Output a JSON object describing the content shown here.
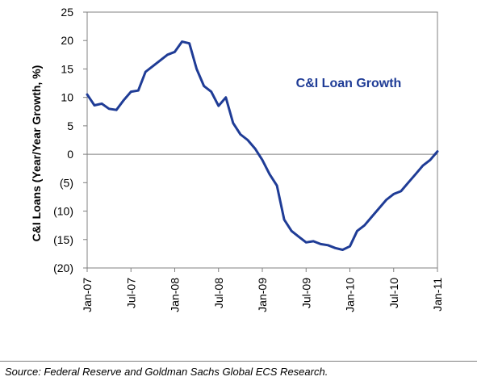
{
  "chart_data": {
    "type": "line",
    "title": "",
    "xlabel": "",
    "ylabel": "C&I Loans (Year/Year Growth, %)",
    "ylim": [
      -20,
      25
    ],
    "xlim": [
      "2007-01",
      "2011-01"
    ],
    "y_ticks": [
      {
        "value": 25,
        "label": "25"
      },
      {
        "value": 20,
        "label": "20"
      },
      {
        "value": 15,
        "label": "15"
      },
      {
        "value": 10,
        "label": "10"
      },
      {
        "value": 5,
        "label": "5"
      },
      {
        "value": 0,
        "label": "0"
      },
      {
        "value": -5,
        "label": "(5)"
      },
      {
        "value": -10,
        "label": "(10)"
      },
      {
        "value": -15,
        "label": "(15)"
      },
      {
        "value": -20,
        "label": "(20)"
      }
    ],
    "x_ticks": [
      {
        "value": "2007-01",
        "label": "Jan-07"
      },
      {
        "value": "2007-07",
        "label": "Jul-07"
      },
      {
        "value": "2008-01",
        "label": "Jan-08"
      },
      {
        "value": "2008-07",
        "label": "Jul-08"
      },
      {
        "value": "2009-01",
        "label": "Jan-09"
      },
      {
        "value": "2009-07",
        "label": "Jul-09"
      },
      {
        "value": "2010-01",
        "label": "Jan-10"
      },
      {
        "value": "2010-07",
        "label": "Jul-10"
      },
      {
        "value": "2011-01",
        "label": "Jan-11"
      }
    ],
    "grid": false,
    "zero_line": true,
    "colors": {
      "series": "#1f3c96",
      "axis": "#808080"
    },
    "series": [
      {
        "name": "C&I Loan Growth",
        "x": [
          "2007-01",
          "2007-02",
          "2007-03",
          "2007-04",
          "2007-05",
          "2007-06",
          "2007-07",
          "2007-08",
          "2007-09",
          "2007-10",
          "2007-11",
          "2007-12",
          "2008-01",
          "2008-02",
          "2008-03",
          "2008-04",
          "2008-05",
          "2008-06",
          "2008-07",
          "2008-08",
          "2008-09",
          "2008-10",
          "2008-11",
          "2008-12",
          "2009-01",
          "2009-02",
          "2009-03",
          "2009-04",
          "2009-05",
          "2009-06",
          "2009-07",
          "2009-08",
          "2009-09",
          "2009-10",
          "2009-11",
          "2009-12",
          "2010-01",
          "2010-02",
          "2010-03",
          "2010-04",
          "2010-05",
          "2010-06",
          "2010-07",
          "2010-08",
          "2010-09",
          "2010-10",
          "2010-11",
          "2010-12",
          "2011-01"
        ],
        "values": [
          10.5,
          8.6,
          8.9,
          8.0,
          7.8,
          9.5,
          11.0,
          11.2,
          14.5,
          15.5,
          16.5,
          17.5,
          18.0,
          19.8,
          19.5,
          15.0,
          12.0,
          11.0,
          8.5,
          10.0,
          5.5,
          3.5,
          2.5,
          1.0,
          -1.0,
          -3.5,
          -5.5,
          -11.5,
          -13.5,
          -14.5,
          -15.5,
          -15.3,
          -15.8,
          -16.0,
          -16.5,
          -16.8,
          -16.2,
          -13.5,
          -12.5,
          -11.0,
          -9.5,
          -8.0,
          -7.0,
          -6.5,
          -5.0,
          -3.5,
          -2.0,
          -1.0,
          0.5
        ]
      }
    ]
  },
  "source_note": "Source: Federal Reserve and Goldman Sachs Global ECS Research."
}
